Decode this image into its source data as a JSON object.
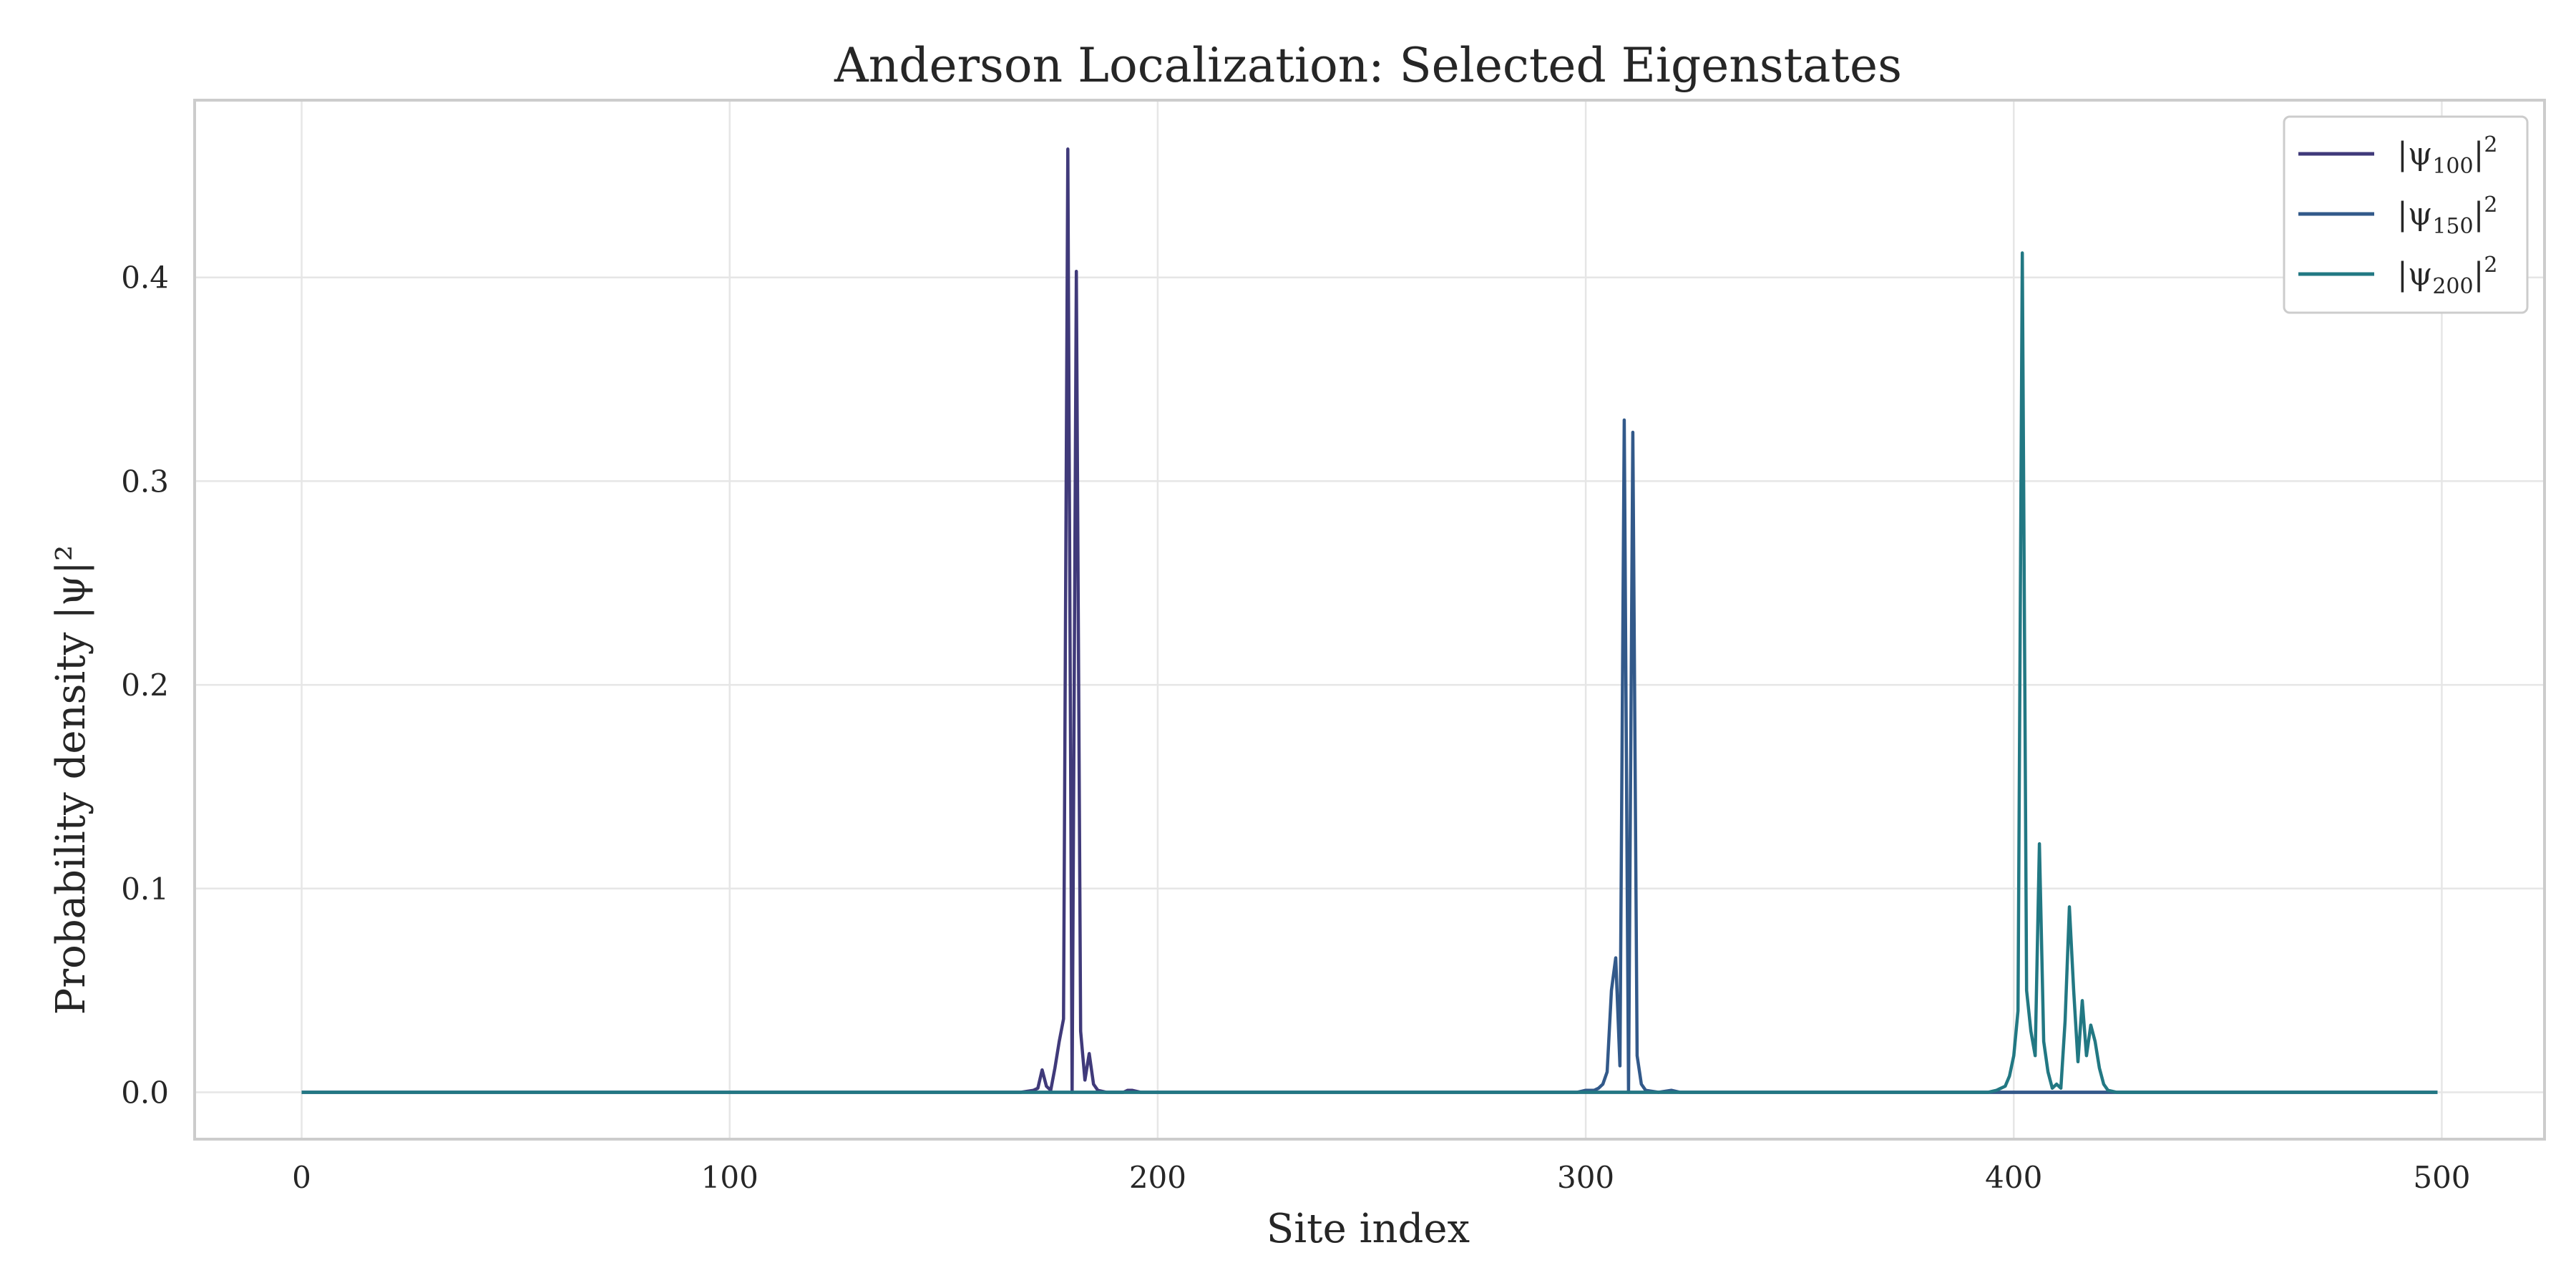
{
  "chart_data": {
    "type": "line",
    "title": "Anderson Localization: Selected Eigenstates",
    "xlabel": "Site index",
    "ylabel": "Probability density |ψ|²",
    "xlim": [
      -25,
      524
    ],
    "ylim": [
      -0.023,
      0.487
    ],
    "xticks": [
      0,
      100,
      200,
      300,
      400,
      500
    ],
    "xtick_labels": [
      "0",
      "100",
      "200",
      "300",
      "400",
      "500"
    ],
    "yticks": [
      0.0,
      0.1,
      0.2,
      0.3,
      0.4
    ],
    "ytick_labels": [
      "0.0",
      "0.1",
      "0.2",
      "0.3",
      "0.4"
    ],
    "grid": true,
    "legend_position": "top-right",
    "x_range": [
      0,
      499
    ],
    "series": [
      {
        "name": "|ψ100|²",
        "label_base": "|ψ",
        "label_sub": "100",
        "label_sup": "2",
        "color": "#403a7a",
        "points": [
          [
            0,
            0
          ],
          [
            168,
            0
          ],
          [
            171,
            0.001
          ],
          [
            172,
            0.002
          ],
          [
            173,
            0.011
          ],
          [
            174,
            0.003
          ],
          [
            175,
            0.001
          ],
          [
            176,
            0.012
          ],
          [
            177,
            0.025
          ],
          [
            178,
            0.036
          ],
          [
            179,
            0.463
          ],
          [
            180,
            0
          ],
          [
            181,
            0.403
          ],
          [
            182,
            0.03
          ],
          [
            183,
            0.006
          ],
          [
            184,
            0.019
          ],
          [
            185,
            0.004
          ],
          [
            186,
            0.001
          ],
          [
            188,
            0
          ],
          [
            192,
            0
          ],
          [
            193,
            0.001
          ],
          [
            194,
            0.001
          ],
          [
            196,
            0
          ],
          [
            499,
            0
          ]
        ]
      },
      {
        "name": "|ψ150|²",
        "label_base": "|ψ",
        "label_sub": "150",
        "label_sup": "2",
        "color": "#32598a",
        "points": [
          [
            0,
            0
          ],
          [
            298,
            0
          ],
          [
            300,
            0.001
          ],
          [
            302,
            0.001
          ],
          [
            303,
            0.002
          ],
          [
            304,
            0.004
          ],
          [
            305,
            0.01
          ],
          [
            306,
            0.05
          ],
          [
            307,
            0.066
          ],
          [
            308,
            0.013
          ],
          [
            309,
            0.33
          ],
          [
            310,
            0
          ],
          [
            311,
            0.324
          ],
          [
            312,
            0.018
          ],
          [
            313,
            0.004
          ],
          [
            314,
            0.001
          ],
          [
            317,
            0
          ],
          [
            320,
            0.001
          ],
          [
            322,
            0
          ],
          [
            499,
            0
          ]
        ]
      },
      {
        "name": "|ψ200|²",
        "label_base": "|ψ",
        "label_sub": "200",
        "label_sup": "2",
        "color": "#227883",
        "points": [
          [
            0,
            0
          ],
          [
            394,
            0
          ],
          [
            396,
            0.001
          ],
          [
            397,
            0.002
          ],
          [
            398,
            0.003
          ],
          [
            399,
            0.008
          ],
          [
            400,
            0.018
          ],
          [
            401,
            0.04
          ],
          [
            402,
            0.412
          ],
          [
            403,
            0.05
          ],
          [
            404,
            0.03
          ],
          [
            405,
            0.018
          ],
          [
            406,
            0.122
          ],
          [
            407,
            0.025
          ],
          [
            408,
            0.01
          ],
          [
            409,
            0.002
          ],
          [
            410,
            0.004
          ],
          [
            411,
            0.002
          ],
          [
            412,
            0.035
          ],
          [
            413,
            0.091
          ],
          [
            414,
            0.05
          ],
          [
            415,
            0.015
          ],
          [
            416,
            0.045
          ],
          [
            417,
            0.018
          ],
          [
            418,
            0.033
          ],
          [
            419,
            0.025
          ],
          [
            420,
            0.012
          ],
          [
            421,
            0.004
          ],
          [
            422,
            0.001
          ],
          [
            424,
            0
          ],
          [
            499,
            0
          ]
        ]
      }
    ]
  }
}
